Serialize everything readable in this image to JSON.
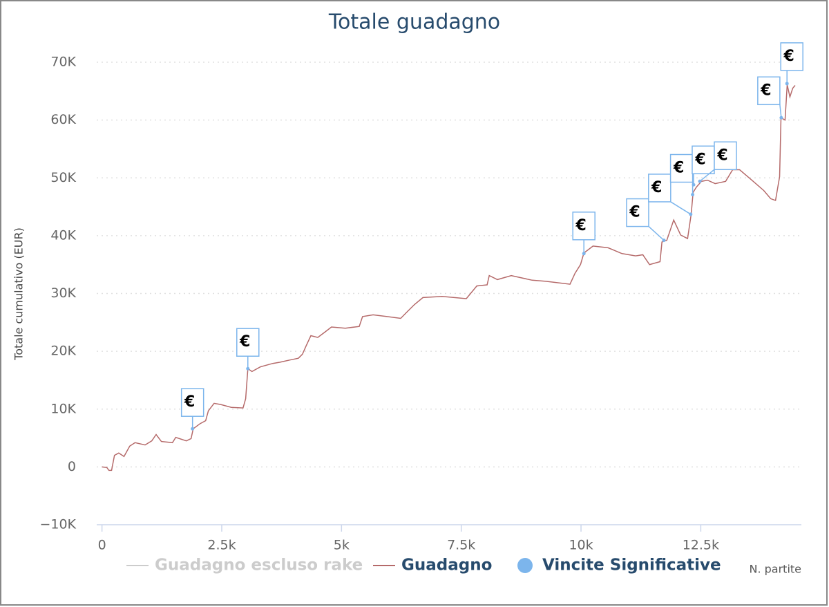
{
  "chart_data": {
    "type": "line",
    "title": "Totale guadagno",
    "y_axis_label": "Totale cumulativo (EUR)",
    "x_axis_label": "N. partite",
    "xlim": [
      -110,
      14600
    ],
    "xticks": [
      0,
      {
        "value": 2500,
        "label": "2.5k"
      },
      {
        "value": 5000,
        "label": "5k"
      },
      {
        "value": 7500,
        "label": "7.5k"
      },
      {
        "value": 10000,
        "label": "10k"
      },
      {
        "value": 12500,
        "label": "12.5k"
      }
    ],
    "ylim": [
      -10000,
      70000
    ],
    "yticks": [
      {
        "value": -10000,
        "label": "−10K"
      },
      0,
      {
        "value": 10000,
        "label": "10K"
      },
      {
        "value": 20000,
        "label": "20K"
      },
      {
        "value": 30000,
        "label": "30K"
      },
      {
        "value": 40000,
        "label": "40K"
      },
      {
        "value": 50000,
        "label": "50K"
      },
      {
        "value": 60000,
        "label": "60K"
      },
      {
        "value": 70000,
        "label": "70K"
      }
    ],
    "grid": true,
    "flag_label": "€",
    "series": [
      {
        "name": "Guadagno escluso rake",
        "color": "#cccccc",
        "visible": false
      },
      {
        "name": "Guadagno",
        "color": "#b56a6a",
        "x": [
          0,
          100,
          145,
          200,
          260,
          350,
          460,
          580,
          690,
          900,
          1040,
          1130,
          1240,
          1470,
          1540,
          1760,
          1860,
          1905,
          2050,
          2165,
          2220,
          2340,
          2480,
          2700,
          2945,
          3000,
          3045,
          3130,
          3305,
          3565,
          3710,
          3925,
          4100,
          4185,
          4260,
          4360,
          4505,
          4650,
          4790,
          5080,
          5370,
          5440,
          5660,
          5950,
          6235,
          6380,
          6525,
          6700,
          7100,
          7605,
          7825,
          8040,
          8085,
          8255,
          8545,
          8980,
          9265,
          9770,
          9875,
          9990,
          10060,
          10250,
          10565,
          10855,
          11140,
          11290,
          11430,
          11650,
          11690,
          11790,
          11935,
          12080,
          12225,
          12300,
          12340,
          12410,
          12515,
          12640,
          12800,
          13020,
          13165,
          13310,
          13595,
          13815,
          13960,
          14060,
          14145,
          14175,
          14260,
          14305,
          14360,
          14420,
          14470
        ],
        "values": [
          0,
          -100,
          -600,
          -600,
          2000,
          2400,
          1800,
          3600,
          4200,
          3800,
          4500,
          5600,
          4400,
          4200,
          5100,
          4500,
          4900,
          6600,
          7500,
          8000,
          9700,
          11000,
          10800,
          10300,
          10200,
          11800,
          17000,
          16500,
          17300,
          17900,
          18100,
          18500,
          18800,
          19500,
          20900,
          22700,
          22400,
          23300,
          24200,
          24000,
          24300,
          26000,
          26300,
          26000,
          25700,
          26900,
          28100,
          29300,
          29500,
          29100,
          31300,
          31500,
          33100,
          32400,
          33100,
          32300,
          32100,
          31600,
          33500,
          35000,
          37000,
          38200,
          37900,
          36900,
          36500,
          36700,
          35000,
          35500,
          38900,
          39200,
          42700,
          40100,
          39500,
          43700,
          47500,
          48400,
          49400,
          49600,
          49000,
          49400,
          51400,
          51400,
          49400,
          47800,
          46400,
          46100,
          50200,
          60400,
          60000,
          66100,
          64000,
          65500,
          66000
        ]
      },
      {
        "name": "Vincite Significative",
        "color": "#7cb5ec",
        "x": [
          1890,
          3045,
          10060,
          11730,
          12290,
          12330,
          12350,
          12480,
          14180,
          14300
        ],
        "values": [
          6600,
          17000,
          36900,
          39200,
          43700,
          47100,
          48800,
          49400,
          60400,
          66300
        ]
      }
    ]
  }
}
